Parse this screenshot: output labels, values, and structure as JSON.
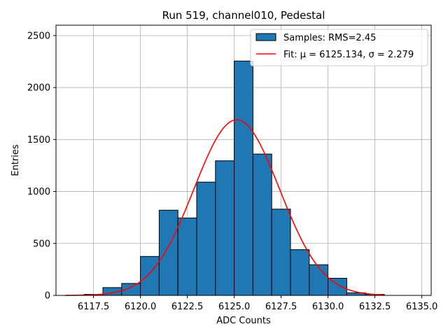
{
  "chart_data": {
    "type": "bar",
    "title": "Run 519, channel010, Pedestal",
    "xlabel": "ADC Counts",
    "ylabel": "Entries",
    "xlim": [
      6115.5,
      6135.5
    ],
    "ylim": [
      0,
      2600
    ],
    "xticks": [
      6117.5,
      6120.0,
      6122.5,
      6125.0,
      6127.5,
      6130.0,
      6132.5,
      6135.0
    ],
    "xtick_labels": [
      "6117.5",
      "6120.0",
      "6122.5",
      "6125.0",
      "6127.5",
      "6130.0",
      "6132.5",
      "6135.0"
    ],
    "yticks": [
      0,
      500,
      1000,
      1500,
      2000,
      2500
    ],
    "ytick_labels": [
      "0",
      "500",
      "1000",
      "1500",
      "2000",
      "2500"
    ],
    "grid": true,
    "bin_edges": [
      6117,
      6118,
      6119,
      6120,
      6121,
      6122,
      6123,
      6124,
      6125,
      6126,
      6127,
      6128,
      6129,
      6130,
      6131,
      6132,
      6133
    ],
    "counts": [
      10,
      75,
      115,
      375,
      820,
      745,
      1090,
      1295,
      2255,
      1360,
      830,
      440,
      295,
      165,
      25,
      10
    ],
    "bar_color": "#1f77b4",
    "fit": {
      "mu": 6125.134,
      "sigma": 2.279,
      "amplitude": 1690,
      "x_range": [
        6116,
        6133
      ],
      "color": "#ff0000"
    },
    "legend": {
      "placement": "top-right",
      "entries": [
        {
          "label": "Samples: RMS=2.45",
          "kind": "patch"
        },
        {
          "label": "Fit: μ = 6125.134, σ = 2.279",
          "kind": "line"
        }
      ]
    }
  }
}
